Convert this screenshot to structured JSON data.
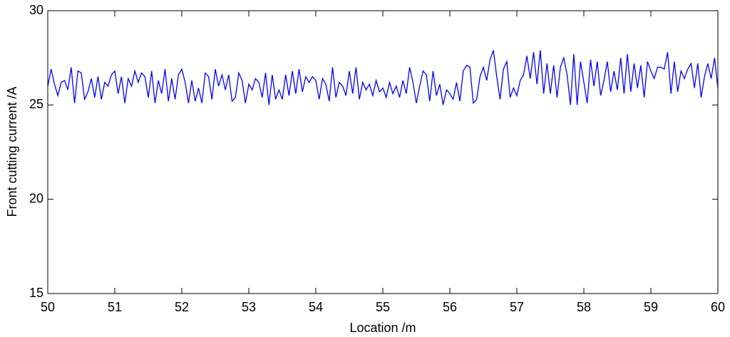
{
  "chart_data": {
    "type": "line",
    "xlabel": "Location /m",
    "ylabel": "Front cutting current /A",
    "x": [
      50,
      50.05,
      50.1,
      50.15,
      50.2,
      50.25,
      50.3,
      50.35,
      50.4,
      50.45,
      50.5,
      50.55,
      50.6,
      50.65,
      50.7,
      50.75,
      50.8,
      50.85,
      50.9,
      50.95,
      51,
      51.05,
      51.1,
      51.15,
      51.2,
      51.25,
      51.3,
      51.35,
      51.4,
      51.45,
      51.5,
      51.55,
      51.6,
      51.65,
      51.7,
      51.75,
      51.8,
      51.85,
      51.9,
      51.95,
      52,
      52.05,
      52.1,
      52.15,
      52.2,
      52.25,
      52.3,
      52.35,
      52.4,
      52.45,
      52.5,
      52.55,
      52.6,
      52.65,
      52.7,
      52.75,
      52.8,
      52.85,
      52.9,
      52.95,
      53,
      53.05,
      53.1,
      53.15,
      53.2,
      53.25,
      53.3,
      53.35,
      53.4,
      53.45,
      53.5,
      53.55,
      53.6,
      53.65,
      53.7,
      53.75,
      53.8,
      53.85,
      53.9,
      53.95,
      54,
      54.05,
      54.1,
      54.15,
      54.2,
      54.25,
      54.3,
      54.35,
      54.4,
      54.45,
      54.5,
      54.55,
      54.6,
      54.65,
      54.7,
      54.75,
      54.8,
      54.85,
      54.9,
      54.95,
      55,
      55.05,
      55.1,
      55.15,
      55.2,
      55.25,
      55.3,
      55.35,
      55.4,
      55.45,
      55.5,
      55.55,
      55.6,
      55.65,
      55.7,
      55.75,
      55.8,
      55.85,
      55.9,
      55.95,
      56,
      56.05,
      56.1,
      56.15,
      56.2,
      56.25,
      56.3,
      56.35,
      56.4,
      56.45,
      56.5,
      56.55,
      56.6,
      56.65,
      56.7,
      56.75,
      56.8,
      56.85,
      56.9,
      56.95,
      57,
      57.05,
      57.1,
      57.15,
      57.2,
      57.25,
      57.3,
      57.35,
      57.4,
      57.45,
      57.5,
      57.55,
      57.6,
      57.65,
      57.7,
      57.75,
      57.8,
      57.85,
      57.9,
      57.95,
      58,
      58.05,
      58.1,
      58.15,
      58.2,
      58.25,
      58.3,
      58.35,
      58.4,
      58.45,
      58.5,
      58.55,
      58.6,
      58.65,
      58.7,
      58.75,
      58.8,
      58.85,
      58.9,
      58.95,
      59,
      59.05,
      59.1,
      59.15,
      59.2,
      59.25,
      59.3,
      59.35,
      59.4,
      59.45,
      59.5,
      59.55,
      59.6,
      59.65,
      59.7,
      59.75,
      59.8,
      59.85,
      59.9,
      59.95,
      60
    ],
    "series": [
      {
        "color": "#0000ff",
        "values": [
          26.0,
          26.9,
          26.1,
          25.5,
          26.2,
          26.3,
          25.8,
          27.0,
          25.1,
          26.8,
          26.7,
          25.3,
          25.7,
          26.4,
          25.4,
          26.5,
          25.3,
          26.2,
          26.0,
          26.6,
          26.8,
          25.6,
          26.5,
          25.1,
          26.4,
          26.0,
          26.8,
          26.2,
          26.7,
          26.5,
          25.4,
          26.8,
          25.1,
          26.3,
          25.6,
          26.9,
          25.2,
          26.4,
          25.3,
          26.6,
          26.9,
          26.2,
          25.1,
          26.3,
          25.2,
          25.9,
          25.1,
          26.7,
          26.5,
          25.3,
          26.9,
          26.0,
          26.6,
          25.8,
          26.6,
          25.2,
          25.4,
          26.7,
          26.3,
          25.1,
          26.1,
          25.8,
          26.4,
          26.2,
          25.4,
          26.7,
          25.0,
          26.6,
          25.3,
          25.8,
          25.3,
          26.6,
          25.5,
          26.8,
          25.6,
          26.9,
          25.7,
          26.5,
          26.2,
          26.5,
          26.3,
          25.3,
          26.4,
          26.1,
          25.2,
          27.0,
          25.4,
          26.2,
          26.0,
          25.5,
          26.8,
          25.6,
          27.0,
          25.3,
          26.2,
          25.8,
          26.1,
          25.5,
          26.3,
          25.7,
          25.9,
          25.4,
          26.2,
          25.6,
          26.0,
          25.4,
          26.3,
          25.6,
          27.0,
          26.2,
          25.1,
          26.0,
          26.8,
          26.6,
          25.2,
          26.8,
          25.5,
          26.1,
          25.0,
          25.8,
          25.6,
          25.3,
          26.2,
          25.2,
          26.8,
          27.1,
          27.0,
          25.1,
          25.3,
          26.5,
          27.0,
          26.3,
          27.4,
          27.9,
          26.5,
          25.3,
          26.9,
          27.3,
          25.4,
          25.9,
          25.5,
          26.3,
          26.6,
          27.6,
          26.4,
          27.8,
          26.1,
          27.9,
          25.6,
          27.2,
          25.6,
          27.1,
          25.4,
          27.0,
          27.5,
          26.6,
          25.0,
          27.7,
          25.0,
          27.3,
          26.2,
          25.1,
          27.4,
          26.0,
          27.3,
          25.5,
          26.3,
          27.3,
          25.7,
          26.8,
          25.8,
          27.5,
          25.6,
          27.7,
          25.7,
          27.2,
          25.9,
          27.1,
          25.4,
          27.3,
          26.8,
          26.4,
          27.0,
          27.0,
          26.9,
          27.8,
          25.6,
          27.3,
          25.7,
          26.8,
          26.4,
          26.9,
          27.2,
          25.9,
          27.2,
          25.4,
          26.5,
          27.2,
          26.4,
          27.5,
          25.9
        ]
      }
    ],
    "xlim": [
      50,
      60
    ],
    "xticks": [
      50,
      51,
      52,
      53,
      54,
      55,
      56,
      57,
      58,
      59,
      60
    ],
    "ylim": [
      15,
      30
    ],
    "yticks": [
      15,
      20,
      25,
      30
    ],
    "grid": false
  }
}
